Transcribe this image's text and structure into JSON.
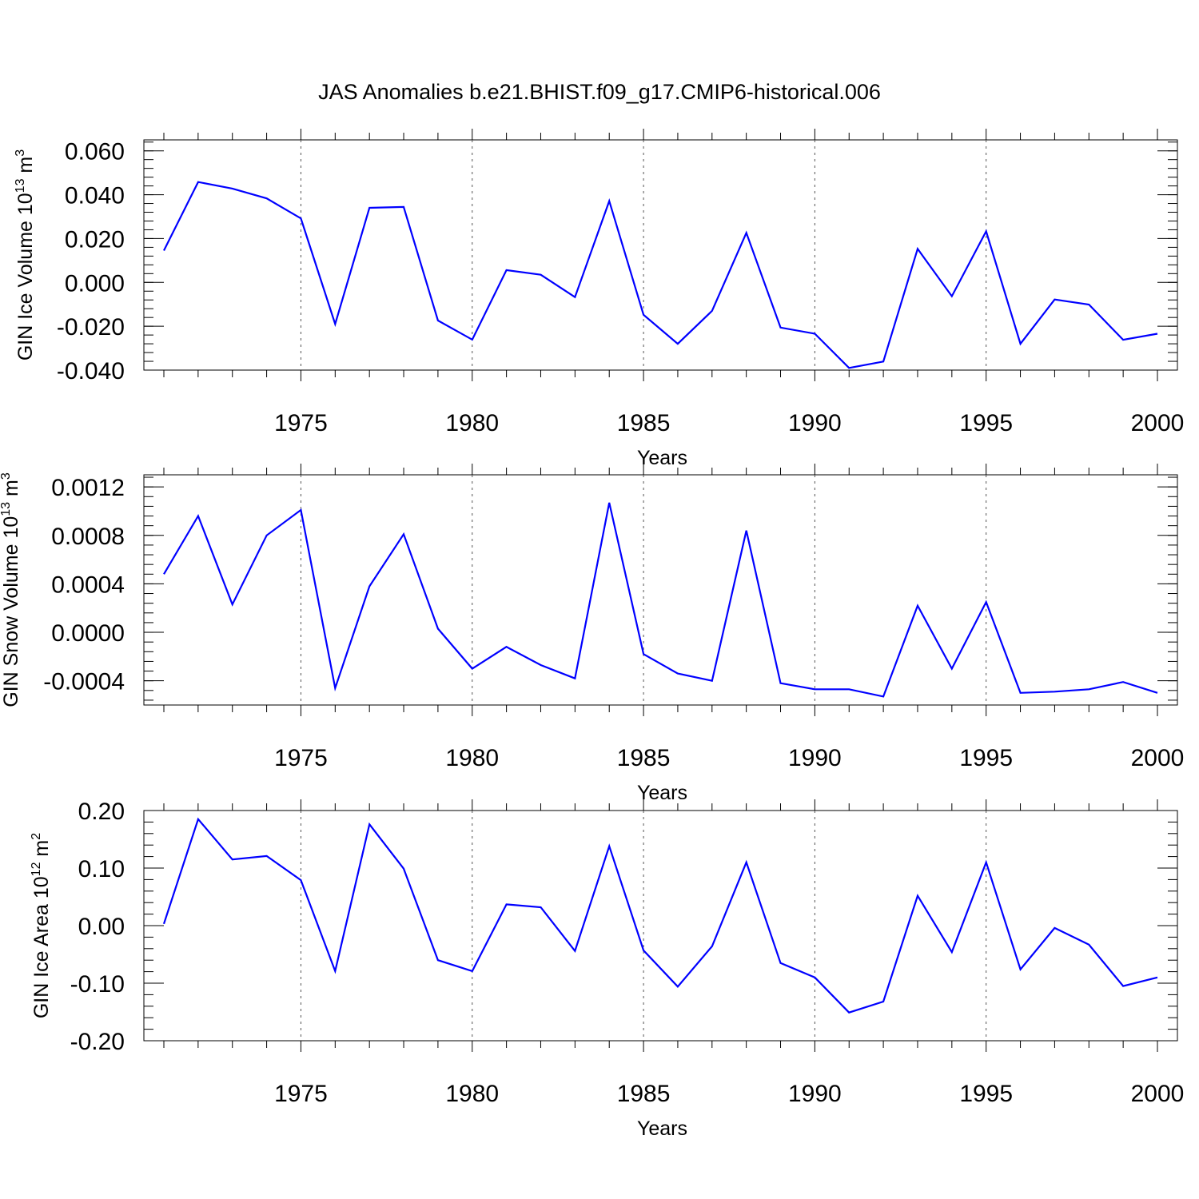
{
  "title": "JAS Anomalies b.e21.BHIST.f09_g17.CMIP6-historical.006",
  "colors": {
    "line": "#0000ff",
    "axes": "#000000",
    "grid": "#555555"
  },
  "chart_data": [
    {
      "type": "line",
      "ylabel": {
        "main": "GIN Ice Volume 10",
        "sup": "13",
        "unit": " m",
        "unit_sup": "3"
      },
      "xlabel": "Years",
      "xlim": [
        1971,
        2000
      ],
      "ylim": [
        -0.04,
        0.065
      ],
      "y_ticks": [
        0.06,
        0.04,
        0.02,
        0.0,
        -0.02,
        -0.04
      ],
      "y_tick_labels": [
        "0.060",
        "0.040",
        "0.020",
        "0.000",
        "-0.020",
        "-0.040"
      ],
      "x_ticks": [
        1975,
        1980,
        1985,
        1990,
        1995,
        2000
      ],
      "x_tick_labels": [
        "1975",
        "1980",
        "1985",
        "1990",
        "1995",
        "2000"
      ],
      "grid": "x major dashed",
      "x": [
        1971,
        1972,
        1973,
        1974,
        1975,
        1976,
        1977,
        1978,
        1979,
        1980,
        1981,
        1982,
        1983,
        1984,
        1985,
        1986,
        1987,
        1988,
        1989,
        1990,
        1991,
        1992,
        1993,
        1994,
        1995,
        1996,
        1997,
        1998,
        1999,
        2000
      ],
      "values": [
        0.0145,
        0.0458,
        0.0428,
        0.0383,
        0.0292,
        -0.019,
        0.034,
        0.0344,
        -0.0174,
        -0.0261,
        0.0056,
        0.0035,
        -0.0067,
        0.0371,
        -0.0148,
        -0.028,
        -0.013,
        0.0226,
        -0.0206,
        -0.0234,
        -0.039,
        -0.0361,
        0.0153,
        -0.0063,
        0.0233,
        -0.028,
        -0.0078,
        -0.0101,
        -0.0262,
        -0.0234
      ]
    },
    {
      "type": "line",
      "ylabel": {
        "main": "GIN Snow Volume 10",
        "sup": "13",
        "unit": " m",
        "unit_sup": "3"
      },
      "xlabel": "Years",
      "xlim": [
        1971,
        2000
      ],
      "ylim": [
        -0.0006,
        0.0013
      ],
      "y_ticks": [
        0.0012,
        0.0008,
        0.0004,
        0.0,
        -0.0004
      ],
      "y_tick_labels": [
        "0.0012",
        "0.0008",
        "0.0004",
        "0.0000",
        "-0.0004"
      ],
      "x_ticks": [
        1975,
        1980,
        1985,
        1990,
        1995,
        2000
      ],
      "x_tick_labels": [
        "1975",
        "1980",
        "1985",
        "1990",
        "1995",
        "2000"
      ],
      "grid": "x major dashed",
      "x": [
        1971,
        1972,
        1973,
        1974,
        1975,
        1976,
        1977,
        1978,
        1979,
        1980,
        1981,
        1982,
        1983,
        1984,
        1985,
        1986,
        1987,
        1988,
        1989,
        1990,
        1991,
        1992,
        1993,
        1994,
        1995,
        1996,
        1997,
        1998,
        1999,
        2000
      ],
      "values": [
        0.00048,
        0.00096,
        0.00023,
        0.0008,
        0.00101,
        -0.00046,
        0.00038,
        0.00081,
        3e-05,
        -0.0003,
        -0.00012,
        -0.00027,
        -0.00038,
        0.00107,
        -0.00018,
        -0.00034,
        -0.0004,
        0.00084,
        -0.00042,
        -0.00047,
        -0.00047,
        -0.00053,
        0.00022,
        -0.0003,
        0.00025,
        -0.0005,
        -0.00049,
        -0.00047,
        -0.00041,
        -0.0005
      ]
    },
    {
      "type": "line",
      "ylabel": {
        "main": "GIN Ice Area 10",
        "sup": "12",
        "unit": " m",
        "unit_sup": "2"
      },
      "xlabel": "Years",
      "xlim": [
        1971,
        2000
      ],
      "ylim": [
        -0.2,
        0.2
      ],
      "y_ticks": [
        0.2,
        0.1,
        0.0,
        -0.1,
        -0.2
      ],
      "y_tick_labels": [
        "0.20",
        "0.10",
        "0.00",
        "-0.10",
        "-0.20"
      ],
      "x_ticks": [
        1975,
        1980,
        1985,
        1990,
        1995,
        2000
      ],
      "x_tick_labels": [
        "1975",
        "1980",
        "1985",
        "1990",
        "1995",
        "2000"
      ],
      "grid": "x major dashed",
      "x": [
        1971,
        1972,
        1973,
        1974,
        1975,
        1976,
        1977,
        1978,
        1979,
        1980,
        1981,
        1982,
        1983,
        1984,
        1985,
        1986,
        1987,
        1988,
        1989,
        1990,
        1991,
        1992,
        1993,
        1994,
        1995,
        1996,
        1997,
        1998,
        1999,
        2000
      ],
      "values": [
        0.003,
        0.185,
        0.115,
        0.121,
        0.079,
        -0.079,
        0.176,
        0.099,
        -0.06,
        -0.079,
        0.037,
        0.032,
        -0.044,
        0.138,
        -0.043,
        -0.106,
        -0.036,
        0.11,
        -0.065,
        -0.09,
        -0.151,
        -0.132,
        0.052,
        -0.046,
        0.11,
        -0.076,
        -0.004,
        -0.033,
        -0.105,
        -0.09
      ]
    }
  ]
}
